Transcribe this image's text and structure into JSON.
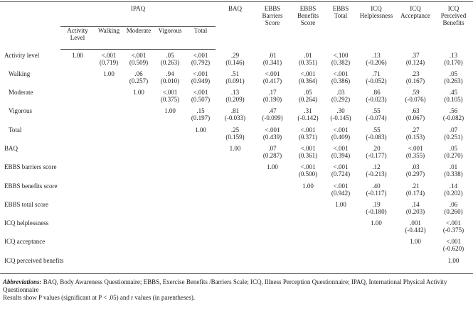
{
  "table": {
    "group_header": "IPAQ",
    "columns": [
      "Activity Level",
      "Walking",
      "Moderate",
      "Vigorous",
      "Total",
      "BAQ",
      "EBBS Barriers Score",
      "EBBS Benefits Score",
      "EBBS Total",
      "ICQ Helplessness",
      "ICQ Acceptance",
      "ICQ Perceived Benefits"
    ],
    "rows": [
      {
        "label": "Activity level",
        "cells": [
          "1.00",
          [
            "<.001",
            "(0.719)"
          ],
          [
            "<.001",
            "(0.509)"
          ],
          [
            ".05",
            "(0.263)"
          ],
          [
            "<.001",
            "(0.792)"
          ],
          [
            ".29",
            "(0.146)"
          ],
          [
            ".01",
            "(0.341)"
          ],
          [
            ".01",
            "(0.351)"
          ],
          [
            "<.100",
            "(0.382)"
          ],
          [
            ".13",
            "(-0.206)"
          ],
          [
            ".37",
            "(0.124)"
          ],
          [
            ".13",
            "(0.170)"
          ]
        ]
      },
      {
        "label": "Walking",
        "cells": [
          null,
          "1.00",
          [
            ".06",
            "(0.257)"
          ],
          [
            ".94",
            "(0.010)"
          ],
          [
            "<.001",
            "(0.949)"
          ],
          [
            ".51",
            "(0.091)"
          ],
          [
            "<.001",
            "(0.417)"
          ],
          [
            "<.001",
            "(0.364)"
          ],
          [
            "<.001",
            "(0.386)"
          ],
          [
            ".71",
            "(-0.052)"
          ],
          [
            ".23",
            "(0.167)"
          ],
          [
            ".05",
            "(0.263)"
          ]
        ]
      },
      {
        "label": "Moderate",
        "cells": [
          null,
          null,
          "1.00",
          [
            "<.001",
            "(0.375)"
          ],
          [
            "<.001",
            "(0.507)"
          ],
          [
            ".13",
            "(0.209)"
          ],
          [
            ".17",
            "(0.190)"
          ],
          [
            ".05",
            "(0.264)"
          ],
          [
            ".03",
            "(0.292)"
          ],
          [
            ".86",
            "(-0.023)"
          ],
          [
            ".59",
            "(-0.076)"
          ],
          [
            ".45",
            "(0.105)"
          ]
        ]
      },
      {
        "label": "Vigorous",
        "cells": [
          null,
          null,
          null,
          "1.00",
          [
            ".15",
            "(0.197)"
          ],
          [
            ".81",
            "(-0.033)"
          ],
          [
            ".47",
            "(-0.099)"
          ],
          [
            ".31",
            "(-0.142)"
          ],
          [
            ".30",
            "(-0.145)"
          ],
          [
            ".55",
            "(-0.074)"
          ],
          [
            ".63",
            "(0.067)"
          ],
          [
            ".56",
            "(-0.082)"
          ]
        ]
      },
      {
        "label": "Total",
        "cells": [
          null,
          null,
          null,
          null,
          "1.00",
          [
            ".25",
            "(0.159)"
          ],
          [
            "<.001",
            "(0.439)"
          ],
          [
            "<.001",
            "(0.371)"
          ],
          [
            "<.001",
            "(0.409)"
          ],
          [
            ".55",
            "(-0.083)"
          ],
          [
            ".27",
            "(0.153)"
          ],
          [
            ".07",
            "(0.251)"
          ]
        ]
      },
      {
        "label": "BAQ",
        "cells": [
          null,
          null,
          null,
          null,
          null,
          "1.00",
          [
            ".07",
            "(0.287)"
          ],
          [
            "<.001",
            "(0.361)"
          ],
          [
            "<.001",
            "(0.394)"
          ],
          [
            ".20",
            "(-0.177)"
          ],
          [
            "<.001",
            "(0.355)"
          ],
          [
            ".05",
            "(0.270)"
          ]
        ]
      },
      {
        "label": "EBBS barriers score",
        "cells": [
          null,
          null,
          null,
          null,
          null,
          null,
          "1.00",
          [
            "<.001",
            "(0.500)"
          ],
          [
            "<.001",
            "(0.724)"
          ],
          [
            ".12",
            "(-0.213)"
          ],
          [
            ".03",
            "(0.297)"
          ],
          [
            ".01",
            "(0.338)"
          ]
        ]
      },
      {
        "label": "EBBS benefits score",
        "cells": [
          null,
          null,
          null,
          null,
          null,
          null,
          null,
          "1.00",
          [
            "<.001",
            "(0.942)"
          ],
          [
            ".40",
            "(-0.117)"
          ],
          [
            ".21",
            "(0.174)"
          ],
          [
            ".14",
            "(0.202)"
          ]
        ]
      },
      {
        "label": "EBBS total score",
        "cells": [
          null,
          null,
          null,
          null,
          null,
          null,
          null,
          null,
          "1.00",
          [
            ".19",
            "(-0.180)"
          ],
          [
            ".14",
            "(0.203)"
          ],
          [
            ".06",
            "(0.260)"
          ]
        ]
      },
      {
        "label": "ICQ helplessness",
        "cells": [
          null,
          null,
          null,
          null,
          null,
          null,
          null,
          null,
          null,
          "1.00",
          [
            ".001",
            "(-0.442)"
          ],
          [
            "<.001",
            "(-0.375)"
          ]
        ]
      },
      {
        "label": "ICQ acceptance",
        "cells": [
          null,
          null,
          null,
          null,
          null,
          null,
          null,
          null,
          null,
          null,
          "1.00",
          [
            "<.001",
            "(-0.620)"
          ]
        ]
      },
      {
        "label": "ICQ perceived benefits",
        "cells": [
          null,
          null,
          null,
          null,
          null,
          null,
          null,
          null,
          null,
          null,
          null,
          "1.00"
        ]
      }
    ]
  },
  "footnote": {
    "abbreviations_label": "Abbreviations:",
    "abbreviations": "BAQ, Body Awareness Questionnaire; EBBS, Exercise Benefits /Barriers Scale; ICQ, Illness Perception Questionnaire; IPAQ, International Physical Activity Questionnaire",
    "results": "Results show P values (significant at P < .05) and r values (in parentheses)."
  }
}
